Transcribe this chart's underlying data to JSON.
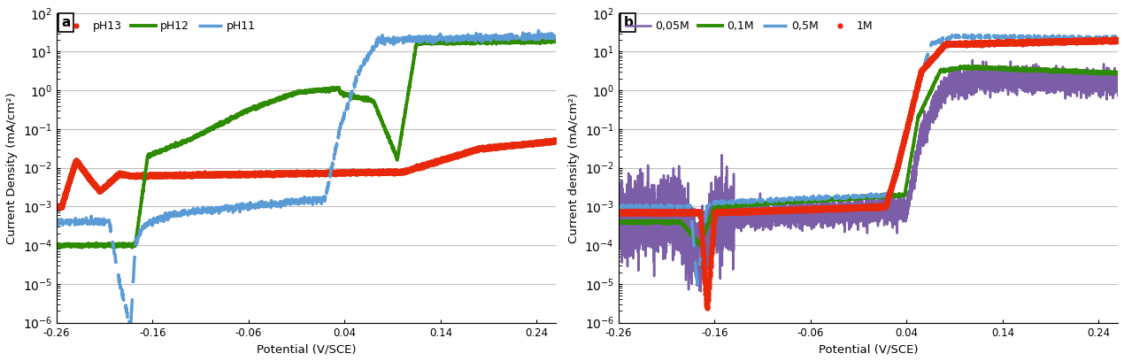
{
  "panel_a": {
    "title_label": "a",
    "ylabel": "Current Density (mA/cm²)",
    "xlabel": "Potential (V/SCE)",
    "ylim_log": [
      -6,
      2
    ],
    "xlim": [
      -0.26,
      0.26
    ],
    "xticks": [
      -0.26,
      -0.16,
      -0.06,
      0.04,
      0.14,
      0.24
    ],
    "series": {
      "pH11": {
        "color": "#5B9BD5",
        "linewidth": 2.5,
        "label": "pH11"
      },
      "pH12": {
        "color": "#2D8B00",
        "linewidth": 2.8,
        "label": "pH12"
      },
      "pH13": {
        "color": "#E8280A",
        "linewidth": 2.5,
        "label": "pH13"
      }
    }
  },
  "panel_b": {
    "title_label": "b",
    "ylabel": "Current density (mA/cm²)",
    "xlabel": "Potential (V/SCE)",
    "ylim_log": [
      -6,
      2
    ],
    "xlim": [
      -0.26,
      0.26
    ],
    "xticks": [
      -0.26,
      -0.16,
      -0.06,
      0.04,
      0.14,
      0.24
    ],
    "series": {
      "1M": {
        "color": "#E8280A",
        "linewidth": 2.5,
        "label": "1M"
      },
      "0.5M": {
        "color": "#5B9BD5",
        "linewidth": 2.5,
        "label": "0,5M"
      },
      "0.1M": {
        "color": "#2D8B00",
        "linewidth": 2.8,
        "label": "0,1M"
      },
      "0.05M": {
        "color": "#7B5EA7",
        "linewidth": 1.8,
        "label": "0,05M"
      }
    }
  },
  "background_color": "#FFFFFF",
  "grid_color": "#BEBEBE"
}
